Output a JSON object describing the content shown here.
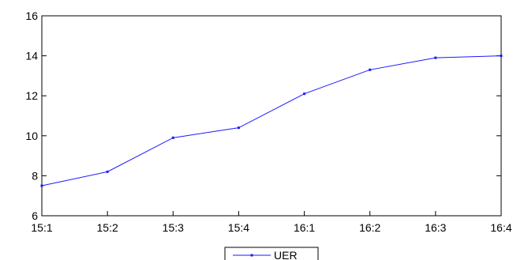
{
  "chart_data": {
    "type": "line",
    "title": "",
    "xlabel": "",
    "ylabel": "",
    "categories": [
      "15:1",
      "15:2",
      "15:3",
      "15:4",
      "16:1",
      "16:2",
      "16:3",
      "16:4"
    ],
    "series": [
      {
        "name": "UER",
        "values": [
          7.5,
          8.2,
          9.9,
          10.4,
          12.1,
          13.3,
          13.9,
          14.0
        ],
        "color": "#1a1aff"
      }
    ],
    "ylim": [
      6,
      16
    ],
    "yticks": [
      6,
      8,
      10,
      12,
      14,
      16
    ],
    "ytick_labels": [
      "6",
      "8",
      "10",
      "12",
      "14",
      "16"
    ],
    "grid": false,
    "markers": true,
    "legend_position": "bottom-center"
  }
}
